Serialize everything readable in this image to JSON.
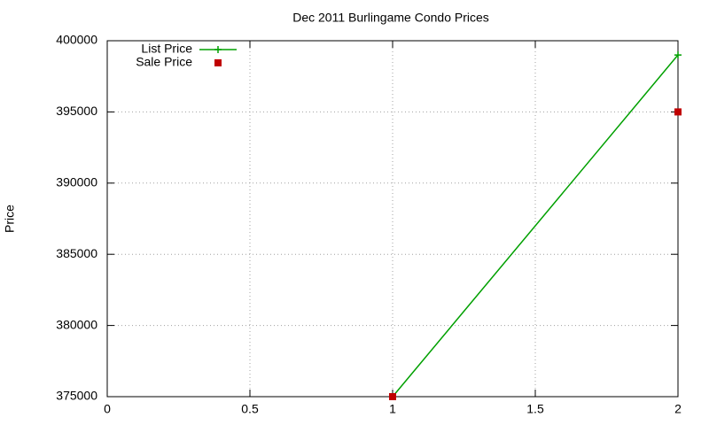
{
  "chart_data": {
    "type": "line",
    "title": "Dec 2011 Burlingame Condo Prices",
    "y_label": "Price",
    "x": [
      1,
      2
    ],
    "series": [
      {
        "name": "List Price",
        "color": "#00a000",
        "values": [
          375000,
          399000
        ],
        "mode": "linespoints",
        "marker": "plus"
      },
      {
        "name": "Sale Price",
        "color": "#c00000",
        "values": [
          375000,
          395000
        ],
        "mode": "points",
        "marker": "square"
      }
    ],
    "xlim": [
      0,
      2
    ],
    "xticks": [
      0,
      0.5,
      1,
      1.5,
      2
    ],
    "ylim": [
      375000,
      400000
    ],
    "yticks": [
      375000,
      380000,
      385000,
      390000,
      395000,
      400000
    ],
    "grid": true,
    "legend": "top-left"
  }
}
